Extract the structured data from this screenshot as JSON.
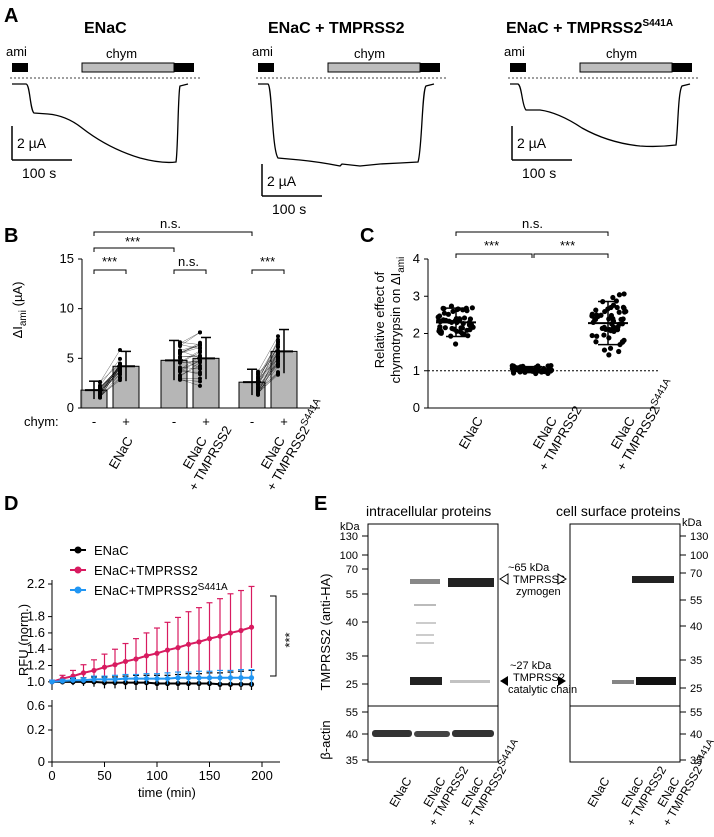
{
  "panel_labels": {
    "a": "A",
    "b": "B",
    "c": "C",
    "d": "D",
    "e": "E"
  },
  "panel_a": {
    "traces": [
      {
        "title": "ENaC",
        "ami_label": "ami",
        "chym_label": "chym",
        "scale_current": "2 µA",
        "scale_time": "100 s"
      },
      {
        "title": "ENaC + TMPRSS2",
        "ami_label": "ami",
        "chym_label": "chym",
        "scale_current": "2 µA",
        "scale_time": "100 s"
      },
      {
        "title_main": "ENaC + TMPRSS2",
        "title_sup": "S441A",
        "ami_label": "ami",
        "chym_label": "chym",
        "scale_current": "2 µA",
        "scale_time": "100 s"
      }
    ]
  },
  "panel_b": {
    "ylabel_main": "ΔI",
    "ylabel_sub": "ami",
    "ylabel_unit": " (µA)",
    "chym_row_label": "chym:",
    "yticks": [
      "0",
      "5",
      "10",
      "15"
    ],
    "chym_signs": [
      "-",
      "+",
      "-",
      "+",
      "-",
      "+"
    ],
    "groups": [
      {
        "line1": "ENaC",
        "line2": "",
        "sup": ""
      },
      {
        "line1": "ENaC",
        "line2": "+ TMPRSS2",
        "sup": ""
      },
      {
        "line1": "ENaC",
        "line2": "+ TMPRSS2",
        "sup": "S441A"
      }
    ],
    "sig": {
      "top": "n.s.",
      "ab": "***",
      "g1": "***",
      "g2": "n.s.",
      "g3": "***"
    },
    "chart_data": {
      "type": "bar",
      "categories": [
        "ENaC -",
        "ENaC +",
        "ENaC+TMPRSS2 -",
        "ENaC+TMPRSS2 +",
        "ENaC+TMPRSS2(S441A) -",
        "ENaC+TMPRSS2(S441A) +"
      ],
      "values": [
        1.8,
        4.2,
        4.8,
        5.0,
        2.6,
        5.7
      ],
      "sd": [
        0.9,
        1.5,
        2.0,
        2.1,
        1.3,
        2.2
      ],
      "ylim": [
        0,
        15
      ]
    }
  },
  "panel_c": {
    "ylabel_line1": "Relative effect of",
    "ylabel_line2_main": "chymotrypsin on ΔI",
    "ylabel_line2_sub": "ami",
    "yticks": [
      "0",
      "1",
      "2",
      "3",
      "4"
    ],
    "groups": [
      {
        "line1": "ENaC",
        "line2": "",
        "sup": ""
      },
      {
        "line1": "ENaC",
        "line2": "+ TMPRSS2",
        "sup": ""
      },
      {
        "line1": "ENaC",
        "line2": "+ TMPRSS2",
        "sup": "S441A"
      }
    ],
    "sig": {
      "top": "n.s.",
      "left": "***",
      "right": "***"
    },
    "chart_data": {
      "type": "scatter",
      "categories": [
        "ENaC",
        "ENaC + TMPRSS2",
        "ENaC + TMPRSS2 S441A"
      ],
      "mean": [
        2.3,
        1.03,
        2.28
      ],
      "sd": [
        0.38,
        0.08,
        0.58
      ],
      "baseline": 1,
      "ylim": [
        0,
        4
      ]
    }
  },
  "panel_d": {
    "ylabel": "RFU (norm.)",
    "xlabel": "time (min)",
    "sig": "***",
    "yticks_top": [
      "1.0",
      "1.2",
      "1.4",
      "1.6",
      "1.8",
      "2.2"
    ],
    "yticks_bottom": [
      "0.6",
      "0.2",
      "0"
    ],
    "xticks": [
      "0",
      "50",
      "100",
      "150",
      "200"
    ],
    "legend": [
      {
        "label_main": "ENaC",
        "label_sup": "",
        "color": "#000000"
      },
      {
        "label_main": "ENaC+TMPRSS2",
        "label_sup": "",
        "color": "#d81b60"
      },
      {
        "label_main": "ENaC+TMPRSS2",
        "label_sup": "S441A",
        "color": "#2196f3"
      }
    ],
    "chart_data": {
      "type": "line",
      "x": [
        0,
        10,
        20,
        30,
        40,
        50,
        60,
        70,
        80,
        90,
        100,
        110,
        120,
        130,
        140,
        150,
        160,
        170,
        180,
        190
      ],
      "series": [
        {
          "name": "ENaC",
          "values": [
            1.0,
            1.0,
            1.0,
            1.0,
            1.0,
            0.99,
            0.99,
            0.99,
            0.99,
            0.99,
            0.98,
            0.98,
            0.98,
            0.98,
            0.98,
            0.98,
            0.97,
            0.97,
            0.97,
            0.97
          ],
          "err": [
            0.02,
            0.03,
            0.04,
            0.05,
            0.06,
            0.07,
            0.07,
            0.08,
            0.09,
            0.09,
            0.1,
            0.1,
            0.11,
            0.12,
            0.12,
            0.13,
            0.14,
            0.15,
            0.16,
            0.17
          ]
        },
        {
          "name": "ENaC+TMPRSS2",
          "values": [
            1.0,
            1.04,
            1.07,
            1.11,
            1.14,
            1.18,
            1.21,
            1.25,
            1.28,
            1.32,
            1.35,
            1.39,
            1.42,
            1.46,
            1.49,
            1.53,
            1.56,
            1.6,
            1.63,
            1.67
          ],
          "err": [
            0.02,
            0.04,
            0.07,
            0.1,
            0.13,
            0.16,
            0.19,
            0.22,
            0.25,
            0.28,
            0.31,
            0.34,
            0.37,
            0.4,
            0.42,
            0.44,
            0.46,
            0.48,
            0.49,
            0.5
          ]
        },
        {
          "name": "ENaC+TMPRSS2 S441A",
          "values": [
            1.0,
            1.01,
            1.02,
            1.02,
            1.03,
            1.03,
            1.03,
            1.04,
            1.04,
            1.04,
            1.04,
            1.04,
            1.05,
            1.05,
            1.05,
            1.05,
            1.05,
            1.05,
            1.05,
            1.05
          ],
          "err": [
            0.02,
            0.02,
            0.03,
            0.03,
            0.04,
            0.04,
            0.05,
            0.05,
            0.05,
            0.06,
            0.06,
            0.07,
            0.07,
            0.07,
            0.08,
            0.08,
            0.09,
            0.09,
            0.1,
            0.1
          ]
        }
      ],
      "ylim": [
        0,
        2.2
      ]
    }
  },
  "panel_e": {
    "left_title": "intracellular proteins",
    "right_title": "cell surface proteins",
    "kda": "kDa",
    "ylabel_main": "TMPRSS2 (anti-HA)",
    "ylabel_actin": "β-actin",
    "markers_left": [
      "130",
      "100",
      "70",
      "55",
      "40",
      "35",
      "25"
    ],
    "markers_right": [
      "130",
      "100",
      "70",
      "55",
      "40",
      "35",
      "25"
    ],
    "actin_markers": [
      "55",
      "40",
      "35"
    ],
    "zymogen_text": [
      "~65 kDa",
      "TMPRSS2",
      "zymogen"
    ],
    "catalytic_text": [
      "~27 kDa",
      "TMPRSS2",
      "catalytic chain"
    ],
    "lanes": [
      {
        "line1": "ENaC",
        "line2": "",
        "sup": ""
      },
      {
        "line1": "ENaC",
        "line2": "+ TMPRSS2",
        "sup": ""
      },
      {
        "line1": "ENaC",
        "line2": "+ TMPRSS2",
        "sup": "S441A"
      }
    ]
  }
}
